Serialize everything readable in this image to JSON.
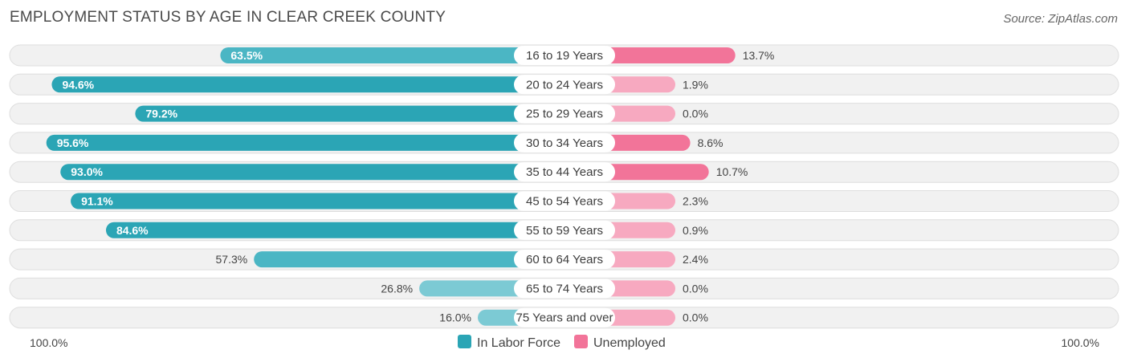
{
  "header": {
    "title": "EMPLOYMENT STATUS BY AGE IN CLEAR CREEK COUNTY",
    "source": "Source: ZipAtlas.com"
  },
  "chart_data": {
    "type": "bar",
    "orientation": "horizontal-diverging",
    "title": "EMPLOYMENT STATUS BY AGE IN CLEAR CREEK COUNTY",
    "categories": [
      "16 to 19 Years",
      "20 to 24 Years",
      "25 to 29 Years",
      "30 to 34 Years",
      "35 to 44 Years",
      "45 to 54 Years",
      "55 to 59 Years",
      "60 to 64 Years",
      "65 to 74 Years",
      "75 Years and over"
    ],
    "series": [
      {
        "name": "In Labor Force",
        "color": "#2ba5b5",
        "values": [
          63.5,
          94.6,
          79.2,
          95.6,
          93.0,
          91.1,
          84.6,
          57.3,
          26.8,
          16.0
        ],
        "labels": [
          "63.5%",
          "94.6%",
          "79.2%",
          "95.6%",
          "93.0%",
          "91.1%",
          "84.6%",
          "57.3%",
          "26.8%",
          "16.0%"
        ]
      },
      {
        "name": "Unemployed",
        "color": "#f27499",
        "values": [
          13.7,
          1.9,
          0.0,
          8.6,
          10.7,
          2.3,
          0.9,
          2.4,
          0.0,
          0.0
        ],
        "labels": [
          "13.7%",
          "1.9%",
          "0.0%",
          "8.6%",
          "10.7%",
          "2.3%",
          "0.9%",
          "2.4%",
          "0.0%",
          "0.0%"
        ]
      }
    ],
    "axis": {
      "left_label": "100.0%",
      "right_label": "100.0%",
      "xlim": [
        0,
        100
      ]
    },
    "legend": [
      "In Labor Force",
      "Unemployed"
    ],
    "legend_position": "bottom-center"
  }
}
